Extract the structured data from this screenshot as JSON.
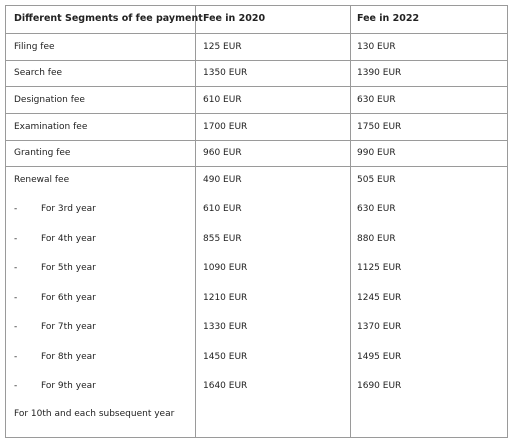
{
  "table": {
    "header": [
      "Different Segments of fee payment",
      "Fee in 2020",
      "Fee in 2022"
    ],
    "rows": [
      [
        "Filing fee",
        "125 EUR",
        "130 EUR"
      ],
      [
        "Search fee",
        "1350 EUR",
        "1390 EUR"
      ],
      [
        "Designation fee",
        "610 EUR",
        "630 EUR"
      ],
      [
        "Examination fee",
        "1700 EUR",
        "1750 EUR"
      ],
      [
        "Granting fee",
        "960 EUR",
        "990 EUR"
      ]
    ],
    "renewal": {
      "row": [
        "Renewal fee",
        "490 EUR",
        "505 EUR"
      ],
      "years": [
        {
          "marker": "-",
          "label": "For 3rd year",
          "fees": [
            "610 EUR",
            "630 EUR"
          ]
        },
        {
          "marker": "-",
          "label": "For 4th year",
          "fees": [
            "855 EUR",
            "880 EUR"
          ]
        },
        {
          "marker": "-",
          "label": "For 5th year",
          "fees": [
            "1090 EUR",
            "1125 EUR"
          ]
        },
        {
          "marker": "-",
          "label": "For 6th year",
          "fees": [
            "1210 EUR",
            "1245 EUR"
          ]
        },
        {
          "marker": "-",
          "label": "For 7th year",
          "fees": [
            "1330 EUR",
            "1370 EUR"
          ]
        },
        {
          "marker": "-",
          "label": "For 8th year",
          "fees": [
            "1450 EUR",
            "1495 EUR"
          ]
        },
        {
          "marker": "-",
          "label": "For 9th year",
          "fees": [
            "1640 EUR",
            "1690 EUR"
          ]
        }
      ],
      "final_label": "For 10th and each subsequent year"
    }
  }
}
